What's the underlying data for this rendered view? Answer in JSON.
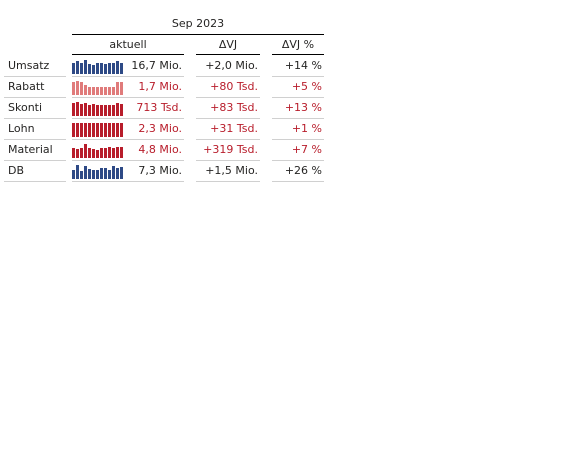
{
  "header": {
    "period": "Sep 2023",
    "col_current": "aktuell",
    "col_delta_abs": "ΔVJ",
    "col_delta_pct": "ΔVJ %"
  },
  "colors": {
    "blue": "#2e4a86",
    "red": "#b81d2b",
    "light_red": "#e07b7b",
    "text": "#252423"
  },
  "rows": [
    {
      "label": "Umsatz",
      "value": "16,7 Mio.",
      "delta_abs": "+2,0 Mio.",
      "delta_pct": "+14 %",
      "tone": "blue",
      "value_color": "text",
      "spark_color": "blue",
      "spark": [
        0.75,
        0.95,
        0.8,
        1.0,
        0.7,
        0.65,
        0.75,
        0.75,
        0.7,
        0.75,
        0.8,
        0.9,
        0.8
      ]
    },
    {
      "label": "Rabatt",
      "value": "1,7 Mio.",
      "delta_abs": "+80 Tsd.",
      "delta_pct": "+5 %",
      "tone": "red",
      "value_color": "red",
      "spark_color": "light_red",
      "spark": [
        0.9,
        1.0,
        0.9,
        0.7,
        0.6,
        0.6,
        0.55,
        0.55,
        0.55,
        0.55,
        0.6,
        0.95,
        0.95
      ]
    },
    {
      "label": "Skonti",
      "value": "713 Tsd.",
      "delta_abs": "+83 Tsd.",
      "delta_pct": "+13 %",
      "tone": "red",
      "value_color": "red",
      "spark_color": "red",
      "spark": [
        0.9,
        1.0,
        0.85,
        0.95,
        0.8,
        0.85,
        0.75,
        0.8,
        0.8,
        0.8,
        0.8,
        0.9,
        0.85
      ]
    },
    {
      "label": "Lohn",
      "value": "2,3 Mio.",
      "delta_abs": "+31 Tsd.",
      "delta_pct": "+1 %",
      "tone": "red",
      "value_color": "red",
      "spark_color": "red",
      "spark": [
        1.0,
        1.0,
        1.0,
        1.0,
        1.0,
        1.0,
        1.0,
        1.0,
        1.0,
        1.0,
        1.0,
        1.0,
        1.0
      ]
    },
    {
      "label": "Material",
      "value": "4,8 Mio.",
      "delta_abs": "+319 Tsd.",
      "delta_pct": "+7 %",
      "tone": "red",
      "value_color": "red",
      "spark_color": "red",
      "spark": [
        0.7,
        0.65,
        0.7,
        1.0,
        0.7,
        0.65,
        0.6,
        0.7,
        0.7,
        0.8,
        0.7,
        0.75,
        0.8
      ]
    },
    {
      "label": "DB",
      "value": "7,3 Mio.",
      "delta_abs": "+1,5 Mio.",
      "delta_pct": "+26 %",
      "tone": "blue",
      "value_color": "text",
      "spark_color": "blue",
      "spark": [
        0.65,
        1.0,
        0.6,
        0.95,
        0.7,
        0.65,
        0.65,
        0.75,
        0.75,
        0.65,
        0.9,
        0.8,
        0.85
      ]
    }
  ]
}
